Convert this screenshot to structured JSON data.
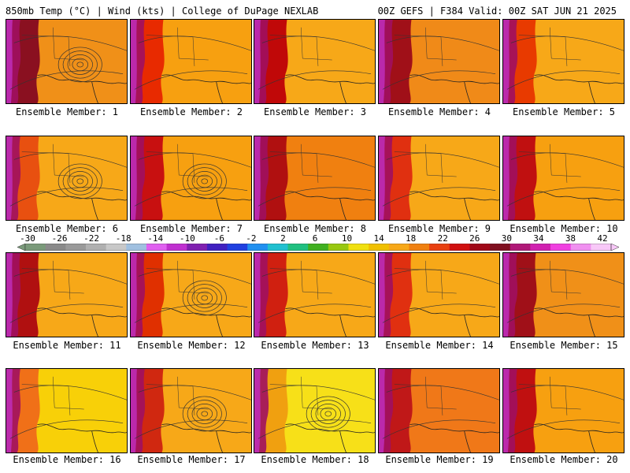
{
  "header": {
    "left": "850mb Temp (°C) | Wind (kts) | College of DuPage NEXLAB",
    "right": "00Z GEFS | F384 Valid: 00Z SAT JUN 21 2025"
  },
  "members": [
    {
      "label": "Ensemble Member: 1",
      "base": "#f09018",
      "hot": "#8a1020",
      "storm": true
    },
    {
      "label": "Ensemble Member: 2",
      "base": "#f7a010",
      "hot": "#e82a00",
      "storm": false
    },
    {
      "label": "Ensemble Member: 3",
      "base": "#f7a818",
      "hot": "#c00808",
      "storm": false
    },
    {
      "label": "Ensemble Member: 4",
      "base": "#f08a18",
      "hot": "#a01018",
      "storm": false
    },
    {
      "label": "Ensemble Member: 5",
      "base": "#f7a818",
      "hot": "#e83a00",
      "storm": false
    },
    {
      "label": "Ensemble Member: 6",
      "base": "#f7a818",
      "hot": "#e85010",
      "storm": true
    },
    {
      "label": "Ensemble Member: 7",
      "base": "#f7a010",
      "hot": "#c81010",
      "storm": true
    },
    {
      "label": "Ensemble Member: 8",
      "base": "#f08010",
      "hot": "#b01010",
      "storm": false
    },
    {
      "label": "Ensemble Member: 9",
      "base": "#f7a818",
      "hot": "#e03010",
      "storm": false
    },
    {
      "label": "Ensemble Member: 10",
      "base": "#f7a010",
      "hot": "#c01010",
      "storm": false
    },
    {
      "label": "Ensemble Member: 11",
      "base": "#f7a818",
      "hot": "#b01010",
      "storm": false
    },
    {
      "label": "Ensemble Member: 12",
      "base": "#f7a818",
      "hot": "#e03000",
      "storm": true
    },
    {
      "label": "Ensemble Member: 13",
      "base": "#f7a818",
      "hot": "#d02010",
      "storm": false
    },
    {
      "label": "Ensemble Member: 14",
      "base": "#f7a818",
      "hot": "#e03010",
      "storm": false
    },
    {
      "label": "Ensemble Member: 15",
      "base": "#f09018",
      "hot": "#a01018",
      "storm": false
    },
    {
      "label": "Ensemble Member: 16",
      "base": "#f8d008",
      "hot": "#f07018",
      "storm": false
    },
    {
      "label": "Ensemble Member: 17",
      "base": "#f7a818",
      "hot": "#d02810",
      "storm": true
    },
    {
      "label": "Ensemble Member: 18",
      "base": "#f7e018",
      "hot": "#f0a010",
      "storm": true
    },
    {
      "label": "Ensemble Member: 19",
      "base": "#f07818",
      "hot": "#c01818",
      "storm": false
    },
    {
      "label": "Ensemble Member: 20",
      "base": "#f7a010",
      "hot": "#c01010",
      "storm": false
    }
  ],
  "colorbar": {
    "ticks": [
      "-30",
      "-26",
      "-22",
      "-18",
      "-14",
      "-10",
      "-6",
      "-2",
      "2",
      "6",
      "10",
      "14",
      "18",
      "22",
      "26",
      "30",
      "34",
      "38",
      "42"
    ],
    "colors": [
      "#7a9a7a",
      "#8a8a8a",
      "#9a9a9a",
      "#b0b0b0",
      "#c8c8c8",
      "#a0c0e0",
      "#e060f0",
      "#c030d0",
      "#8020b0",
      "#4020c0",
      "#2040e0",
      "#2090f0",
      "#20c0d0",
      "#20c080",
      "#40b020",
      "#98c810",
      "#f0e010",
      "#f0c000",
      "#f7a818",
      "#f08010",
      "#e84010",
      "#d01010",
      "#a00818",
      "#801020",
      "#b01878",
      "#d020b0",
      "#f040e0",
      "#f090f0",
      "#f8c8f8"
    ]
  }
}
